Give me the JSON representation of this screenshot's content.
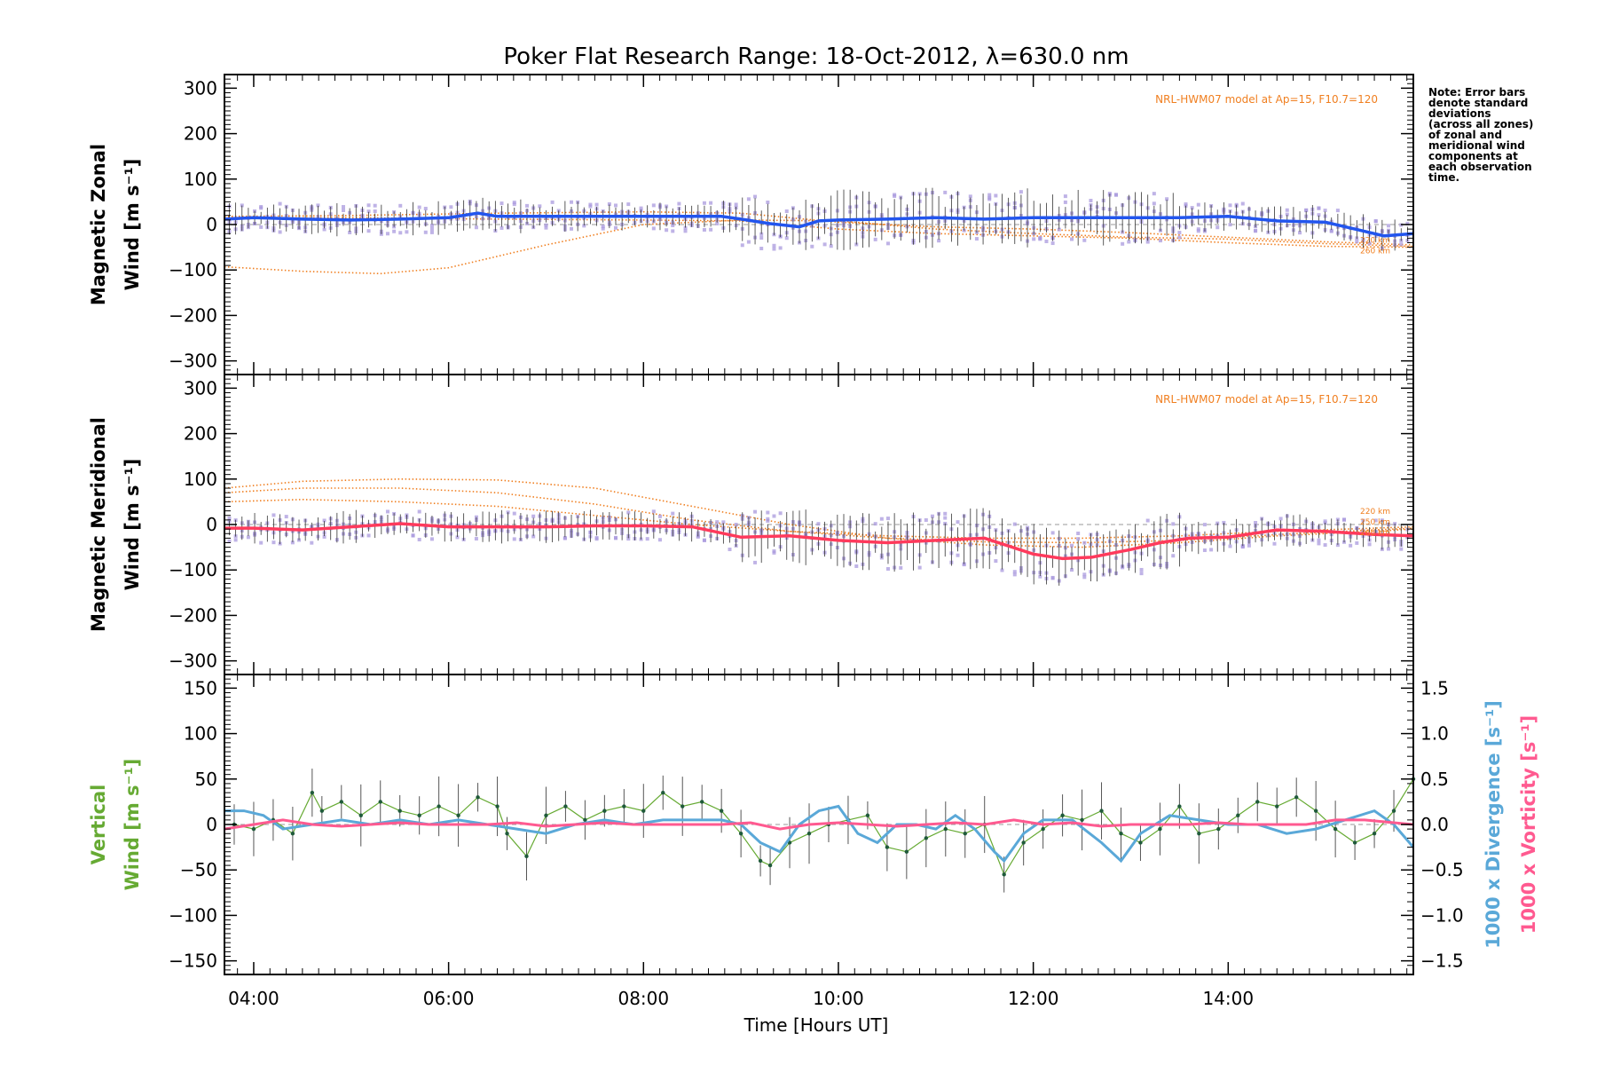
{
  "title": "Poker Flat Research Range: 18-Oct-2012, λ=630.0 nm",
  "note_lines": [
    "Note: Error bars",
    "denote standard",
    "deviations",
    "(across all zones)",
    "of zonal and",
    "meridional wind",
    "components at",
    "each observation",
    "time."
  ],
  "xaxis": {
    "label": "Time [Hours UT]",
    "range": [
      3.7,
      15.9
    ],
    "ticks": [
      4,
      6,
      8,
      10,
      12,
      14
    ],
    "tick_labels": [
      "04:00",
      "06:00",
      "08:00",
      "10:00",
      "12:00",
      "14:00"
    ]
  },
  "colors": {
    "zonal": "#2255ee",
    "meridional": "#ff3a5c",
    "vertical": "#66aa33",
    "divergence": "#5aa8d8",
    "vorticity": "#ff5a90",
    "model": "#f07f20",
    "zones": "#aa99dd"
  },
  "chart_data": [
    {
      "type": "line",
      "id": "zonal",
      "ylabel_lines": [
        "Magnetic Zonal",
        "Wind [m s⁻¹]"
      ],
      "ylim": [
        -330,
        330
      ],
      "yticks": [
        -300,
        -200,
        -100,
        0,
        100,
        200,
        300
      ],
      "ytick_labels": [
        "−300",
        "−200",
        "−100",
        "0",
        "100",
        "200",
        "300"
      ],
      "model_label": "NRL-HWM07 model at Ap=15, F10.7=120",
      "model_alt_labels": [
        "220 km",
        "260 km"
      ],
      "series": [
        {
          "x": [
            3.7,
            4.0,
            4.5,
            5.0,
            5.5,
            6.0,
            6.3,
            6.5,
            7.0,
            7.5,
            8.0,
            8.5,
            8.8,
            9.0,
            9.3,
            9.6,
            9.8,
            10.0,
            10.5,
            11.0,
            11.5,
            12.0,
            12.5,
            13.0,
            13.5,
            14.0,
            14.5,
            15.0,
            15.3,
            15.6,
            15.9
          ],
          "y": [
            12,
            15,
            12,
            10,
            12,
            15,
            25,
            18,
            18,
            18,
            18,
            18,
            18,
            12,
            2,
            -5,
            8,
            10,
            12,
            15,
            12,
            15,
            15,
            15,
            15,
            18,
            8,
            5,
            -10,
            -25,
            -20
          ]
        }
      ],
      "model": [
        {
          "x": [
            3.7,
            4.5,
            5.3,
            6.0,
            7.0,
            8.0,
            9.0,
            10.0,
            11.0,
            12.0,
            13.0,
            14.0,
            15.0,
            15.9
          ],
          "y": [
            -93,
            -103,
            -108,
            -95,
            -45,
            0,
            10,
            8,
            -10,
            -20,
            -28,
            -32,
            -42,
            -48
          ]
        },
        {
          "x": [
            3.7,
            5.0,
            6.5,
            8.0,
            9.0,
            10.0,
            11.0,
            12.0,
            13.0,
            14.0,
            15.0,
            15.9
          ],
          "y": [
            15,
            15,
            12,
            10,
            8,
            -10,
            -20,
            -25,
            -30,
            -40,
            -48,
            -50
          ]
        },
        {
          "x": [
            3.7,
            5.0,
            6.5,
            8.0,
            9.0,
            10.0,
            11.0,
            12.0,
            13.0,
            14.0,
            15.0,
            15.9
          ],
          "y": [
            18,
            20,
            25,
            28,
            25,
            5,
            -5,
            -10,
            -18,
            -28,
            -38,
            -45
          ]
        }
      ]
    },
    {
      "type": "line",
      "id": "meridional",
      "ylabel_lines": [
        "Magnetic Meridional",
        "Wind [m s⁻¹]"
      ],
      "ylim": [
        -330,
        330
      ],
      "yticks": [
        -300,
        -200,
        -100,
        0,
        100,
        200,
        300
      ],
      "ytick_labels": [
        "−300",
        "−200",
        "−100",
        "0",
        "100",
        "200",
        "300"
      ],
      "model_label": "NRL-HWM07 model at Ap=15, F10.7=120",
      "model_alt_labels": [
        "220 km",
        "250 km",
        "260 km"
      ],
      "series": [
        {
          "x": [
            3.7,
            4.0,
            4.5,
            5.0,
            5.5,
            6.0,
            6.5,
            7.0,
            7.5,
            8.0,
            8.5,
            9.0,
            9.5,
            10.0,
            10.5,
            11.0,
            11.5,
            12.0,
            12.3,
            12.6,
            13.0,
            13.3,
            13.6,
            14.0,
            14.5,
            15.0,
            15.5,
            15.9
          ],
          "y": [
            -8,
            -8,
            -12,
            -5,
            2,
            -5,
            -5,
            -5,
            -3,
            -3,
            -5,
            -28,
            -25,
            -35,
            -40,
            -35,
            -30,
            -65,
            -75,
            -72,
            -55,
            -40,
            -30,
            -28,
            -12,
            -15,
            -22,
            -25
          ]
        }
      ],
      "model": [
        {
          "x": [
            3.7,
            4.5,
            5.5,
            6.5,
            7.5,
            8.5,
            9.5,
            10.5,
            11.5,
            12.5,
            13.5,
            14.5,
            15.5,
            15.9
          ],
          "y": [
            80,
            95,
            100,
            98,
            80,
            40,
            0,
            -30,
            -45,
            -50,
            -40,
            -25,
            -15,
            -10
          ]
        },
        {
          "x": [
            3.7,
            4.5,
            5.5,
            6.5,
            7.5,
            8.5,
            9.5,
            10.5,
            11.5,
            12.5,
            13.5,
            14.5,
            15.5,
            15.9
          ],
          "y": [
            70,
            80,
            80,
            70,
            45,
            10,
            -15,
            -30,
            -38,
            -40,
            -35,
            -22,
            -12,
            -8
          ]
        },
        {
          "x": [
            3.7,
            4.5,
            5.5,
            6.5,
            7.5,
            8.5,
            9.5,
            10.5,
            11.5,
            12.5,
            13.5,
            14.5,
            15.5,
            15.9
          ],
          "y": [
            50,
            55,
            50,
            40,
            20,
            0,
            -15,
            -25,
            -30,
            -30,
            -25,
            -15,
            -8,
            -5
          ]
        }
      ]
    },
    {
      "type": "line",
      "id": "vertical",
      "ylabel_lines": [
        "Vertical",
        "Wind [m s⁻¹]"
      ],
      "ylim": [
        -165,
        165
      ],
      "yticks": [
        -150,
        -100,
        -50,
        0,
        50,
        100,
        150
      ],
      "ytick_labels": [
        "−150",
        "−100",
        "−50",
        "0",
        "50",
        "100",
        "150"
      ],
      "y2label_lines": [
        "1000 x Divergence [s⁻¹]",
        "1000 x Vorticity [s⁻¹]"
      ],
      "y2lim": [
        -1.65,
        1.65
      ],
      "y2ticks": [
        -1.5,
        -1.0,
        -0.5,
        0.0,
        0.5,
        1.0,
        1.5
      ],
      "y2tick_labels": [
        "−1.5",
        "−1.0",
        "−0.5",
        "0.0",
        "0.5",
        "1.0",
        "1.5"
      ],
      "series": [
        {
          "name": "",
          "axis": "y",
          "x": [
            3.8,
            4.0,
            4.2,
            4.4,
            4.6,
            4.7,
            4.9,
            5.1,
            5.3,
            5.5,
            5.7,
            5.9,
            6.1,
            6.3,
            6.5,
            6.6,
            6.8,
            7.0,
            7.2,
            7.4,
            7.6,
            7.8,
            8.0,
            8.2,
            8.4,
            8.6,
            8.8,
            9.0,
            9.2,
            9.3,
            9.5,
            9.7,
            9.9,
            10.1,
            10.3,
            10.5,
            10.7,
            10.9,
            11.1,
            11.3,
            11.5,
            11.7,
            11.9,
            12.1,
            12.3,
            12.5,
            12.7,
            12.9,
            13.1,
            13.3,
            13.5,
            13.7,
            13.9,
            14.1,
            14.3,
            14.5,
            14.7,
            14.9,
            15.1,
            15.3,
            15.5,
            15.7,
            15.9
          ],
          "y": [
            0,
            -5,
            5,
            -10,
            35,
            15,
            25,
            10,
            25,
            15,
            10,
            20,
            10,
            30,
            20,
            -10,
            -35,
            10,
            20,
            5,
            15,
            20,
            15,
            35,
            20,
            25,
            15,
            -10,
            -40,
            -45,
            -20,
            -10,
            0,
            5,
            10,
            -25,
            -30,
            -15,
            -5,
            -10,
            0,
            -55,
            -20,
            -5,
            10,
            5,
            15,
            -10,
            -20,
            -5,
            20,
            -10,
            -5,
            10,
            25,
            20,
            30,
            15,
            -5,
            -20,
            -10,
            15,
            50
          ]
        },
        {
          "name": "",
          "axis": "y2",
          "x": [
            3.7,
            3.9,
            4.1,
            4.3,
            4.6,
            4.9,
            5.2,
            5.5,
            5.8,
            6.1,
            6.4,
            6.7,
            7.0,
            7.3,
            7.6,
            7.9,
            8.2,
            8.5,
            8.8,
            9.0,
            9.2,
            9.4,
            9.6,
            9.8,
            10.0,
            10.2,
            10.4,
            10.6,
            10.8,
            11.0,
            11.2,
            11.4,
            11.6,
            11.7,
            11.9,
            12.1,
            12.4,
            12.7,
            12.9,
            13.1,
            13.4,
            13.7,
            14.0,
            14.3,
            14.6,
            14.9,
            15.2,
            15.5,
            15.7,
            15.9
          ],
          "y": [
            0.15,
            0.15,
            0.1,
            -0.05,
            0.0,
            0.05,
            0.0,
            0.05,
            0.0,
            0.05,
            0.0,
            -0.05,
            -0.1,
            0.0,
            0.05,
            0.0,
            0.05,
            0.05,
            0.05,
            0.0,
            -0.2,
            -0.3,
            0.0,
            0.15,
            0.2,
            -0.1,
            -0.2,
            0.0,
            0.0,
            -0.05,
            0.1,
            -0.05,
            -0.3,
            -0.4,
            -0.1,
            0.05,
            0.05,
            -0.2,
            -0.4,
            -0.1,
            0.1,
            0.05,
            0.0,
            0.0,
            -0.1,
            -0.05,
            0.05,
            0.15,
            0.0,
            -0.25
          ]
        },
        {
          "name": "",
          "axis": "y2",
          "x": [
            3.7,
            4.0,
            4.3,
            4.6,
            4.9,
            5.2,
            5.5,
            5.8,
            6.1,
            6.4,
            6.7,
            7.0,
            7.3,
            7.6,
            7.9,
            8.2,
            8.5,
            8.8,
            9.1,
            9.4,
            9.7,
            10.0,
            10.3,
            10.6,
            10.9,
            11.2,
            11.5,
            11.8,
            12.1,
            12.4,
            12.7,
            13.0,
            13.3,
            13.6,
            13.9,
            14.2,
            14.5,
            14.8,
            15.1,
            15.4,
            15.7,
            15.9
          ],
          "y": [
            -0.05,
            0.0,
            0.05,
            0.0,
            -0.02,
            0.0,
            0.02,
            0.0,
            0.0,
            0.0,
            0.02,
            -0.02,
            0.0,
            0.02,
            0.0,
            0.0,
            0.0,
            0.0,
            0.02,
            -0.05,
            0.0,
            0.02,
            0.0,
            -0.02,
            0.0,
            0.02,
            0.0,
            0.05,
            0.0,
            0.02,
            -0.02,
            0.0,
            0.0,
            0.0,
            0.02,
            0.0,
            0.0,
            0.0,
            0.05,
            0.05,
            0.02,
            0.0
          ]
        }
      ]
    }
  ]
}
